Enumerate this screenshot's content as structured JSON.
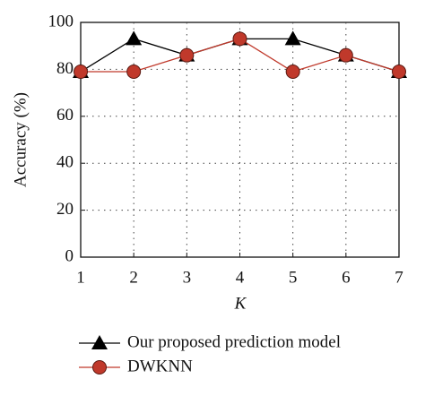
{
  "chart_data": {
    "type": "line",
    "x": [
      1,
      2,
      3,
      4,
      5,
      6,
      7
    ],
    "xlim": [
      1,
      7
    ],
    "xticks": [
      1,
      2,
      3,
      4,
      5,
      6,
      7
    ],
    "ylim": [
      0,
      100
    ],
    "yticks": [
      0,
      20,
      40,
      60,
      80,
      100
    ],
    "x_label": "K",
    "y_label": "Accuracy (%)",
    "grid": true,
    "legend": "bottom",
    "series": [
      {
        "name": "Our proposed prediction model",
        "color": "#000000",
        "marker": "triangle",
        "values": [
          79,
          93,
          86,
          93,
          93,
          86,
          79
        ]
      },
      {
        "name": "DWKNN",
        "color": "#c0392b",
        "marker": "circle",
        "values": [
          79,
          79,
          86,
          93,
          79,
          86,
          79
        ]
      }
    ]
  }
}
